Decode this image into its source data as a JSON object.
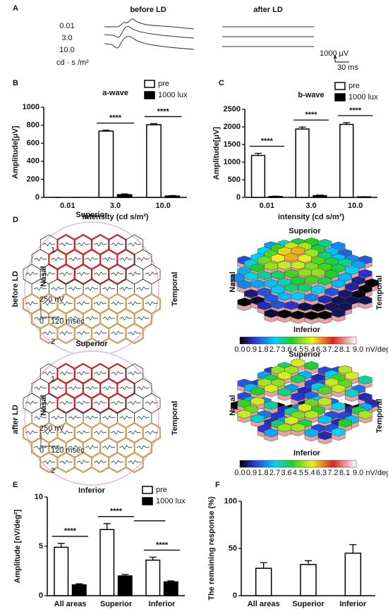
{
  "panel_a": {
    "label": "A",
    "before": "before LD",
    "after": "after LD",
    "intensities": [
      "0.01",
      "3.0",
      "10.0"
    ],
    "unit": "cd · s /m²",
    "scale_v": "1000 µV",
    "scale_t": "30 ms"
  },
  "panel_d": {
    "label": "D",
    "before": "before LD",
    "after": "after LD",
    "superior": "Superior",
    "inferior": "Inferior",
    "nasal": "Nasal",
    "temporal": "Temporal",
    "ring1": "1",
    "ring2": "2",
    "scale_v": "250 nV",
    "scale_zero": "0",
    "scale_t": "120 msec",
    "colorbar_ticks": [
      "0.0",
      "0.9",
      "1.8",
      "2.7",
      "3.6",
      "4.5",
      "5.4",
      "6.3",
      "7.2",
      "8.1"
    ],
    "colorbar_end": "9.0 nV/deg²"
  },
  "chart_data": [
    {
      "type": "bar",
      "label": "B",
      "title": "a-wave",
      "y_label": "Amplitude[μV]",
      "x_label": "intensity (cd s/m²)",
      "categories": [
        "0.01",
        "3.0",
        "10.0"
      ],
      "series": [
        {
          "name": "pre",
          "color": "#ffffff",
          "values": [
            0,
            735,
            805
          ],
          "errors": [
            0,
            10,
            12
          ]
        },
        {
          "name": "1000 lux",
          "color": "#000000",
          "values": [
            0,
            30,
            15
          ],
          "errors": [
            0,
            8,
            5
          ]
        }
      ],
      "ylim": [
        0,
        1000
      ],
      "yticks": [
        0,
        200,
        400,
        600,
        800,
        1000
      ],
      "annotations": [
        "****",
        "****"
      ],
      "legend": "top-right"
    },
    {
      "type": "bar",
      "label": "C",
      "title": "b-wave",
      "y_label": "Amplitude[μV]",
      "x_label": "intensity (cd s/m²)",
      "categories": [
        "0.01",
        "3.0",
        "10.0"
      ],
      "series": [
        {
          "name": "pre",
          "color": "#ffffff",
          "values": [
            1190,
            1940,
            2070
          ],
          "errors": [
            60,
            55,
            50
          ]
        },
        {
          "name": "1000 lux",
          "color": "#000000",
          "values": [
            25,
            50,
            15
          ],
          "errors": [
            10,
            15,
            5
          ]
        }
      ],
      "ylim": [
        0,
        2500
      ],
      "yticks": [
        0,
        500,
        1000,
        1500,
        2000,
        2500
      ],
      "annotations": [
        "****",
        "****",
        "****"
      ],
      "legend": "top-right"
    },
    {
      "type": "bar",
      "label": "E",
      "y_label": "Amplitude [nV/deg²]",
      "categories": [
        "All areas",
        "Superior",
        "Inferior"
      ],
      "series": [
        {
          "name": "pre",
          "color": "#ffffff",
          "values": [
            4.9,
            6.7,
            3.6
          ],
          "errors": [
            0.4,
            0.6,
            0.3
          ]
        },
        {
          "name": "1000 lux",
          "color": "#000000",
          "values": [
            1.1,
            2.0,
            1.4
          ],
          "errors": [
            0.1,
            0.15,
            0.1
          ]
        }
      ],
      "ylim": [
        0,
        10
      ],
      "yticks": [
        0,
        5,
        10
      ],
      "annotations": [
        "****",
        "****",
        "****"
      ],
      "legend": "top-right"
    },
    {
      "type": "bar",
      "label": "F",
      "y_label": "The remaining response (%)",
      "categories": [
        "All areas",
        "Superior",
        "Inferior"
      ],
      "series": [
        {
          "color": "#ffffff",
          "values": [
            29,
            33,
            45
          ],
          "errors": [
            6,
            4,
            9
          ]
        }
      ],
      "ylim": [
        0,
        100
      ],
      "yticks": [
        0,
        50,
        100
      ]
    }
  ]
}
